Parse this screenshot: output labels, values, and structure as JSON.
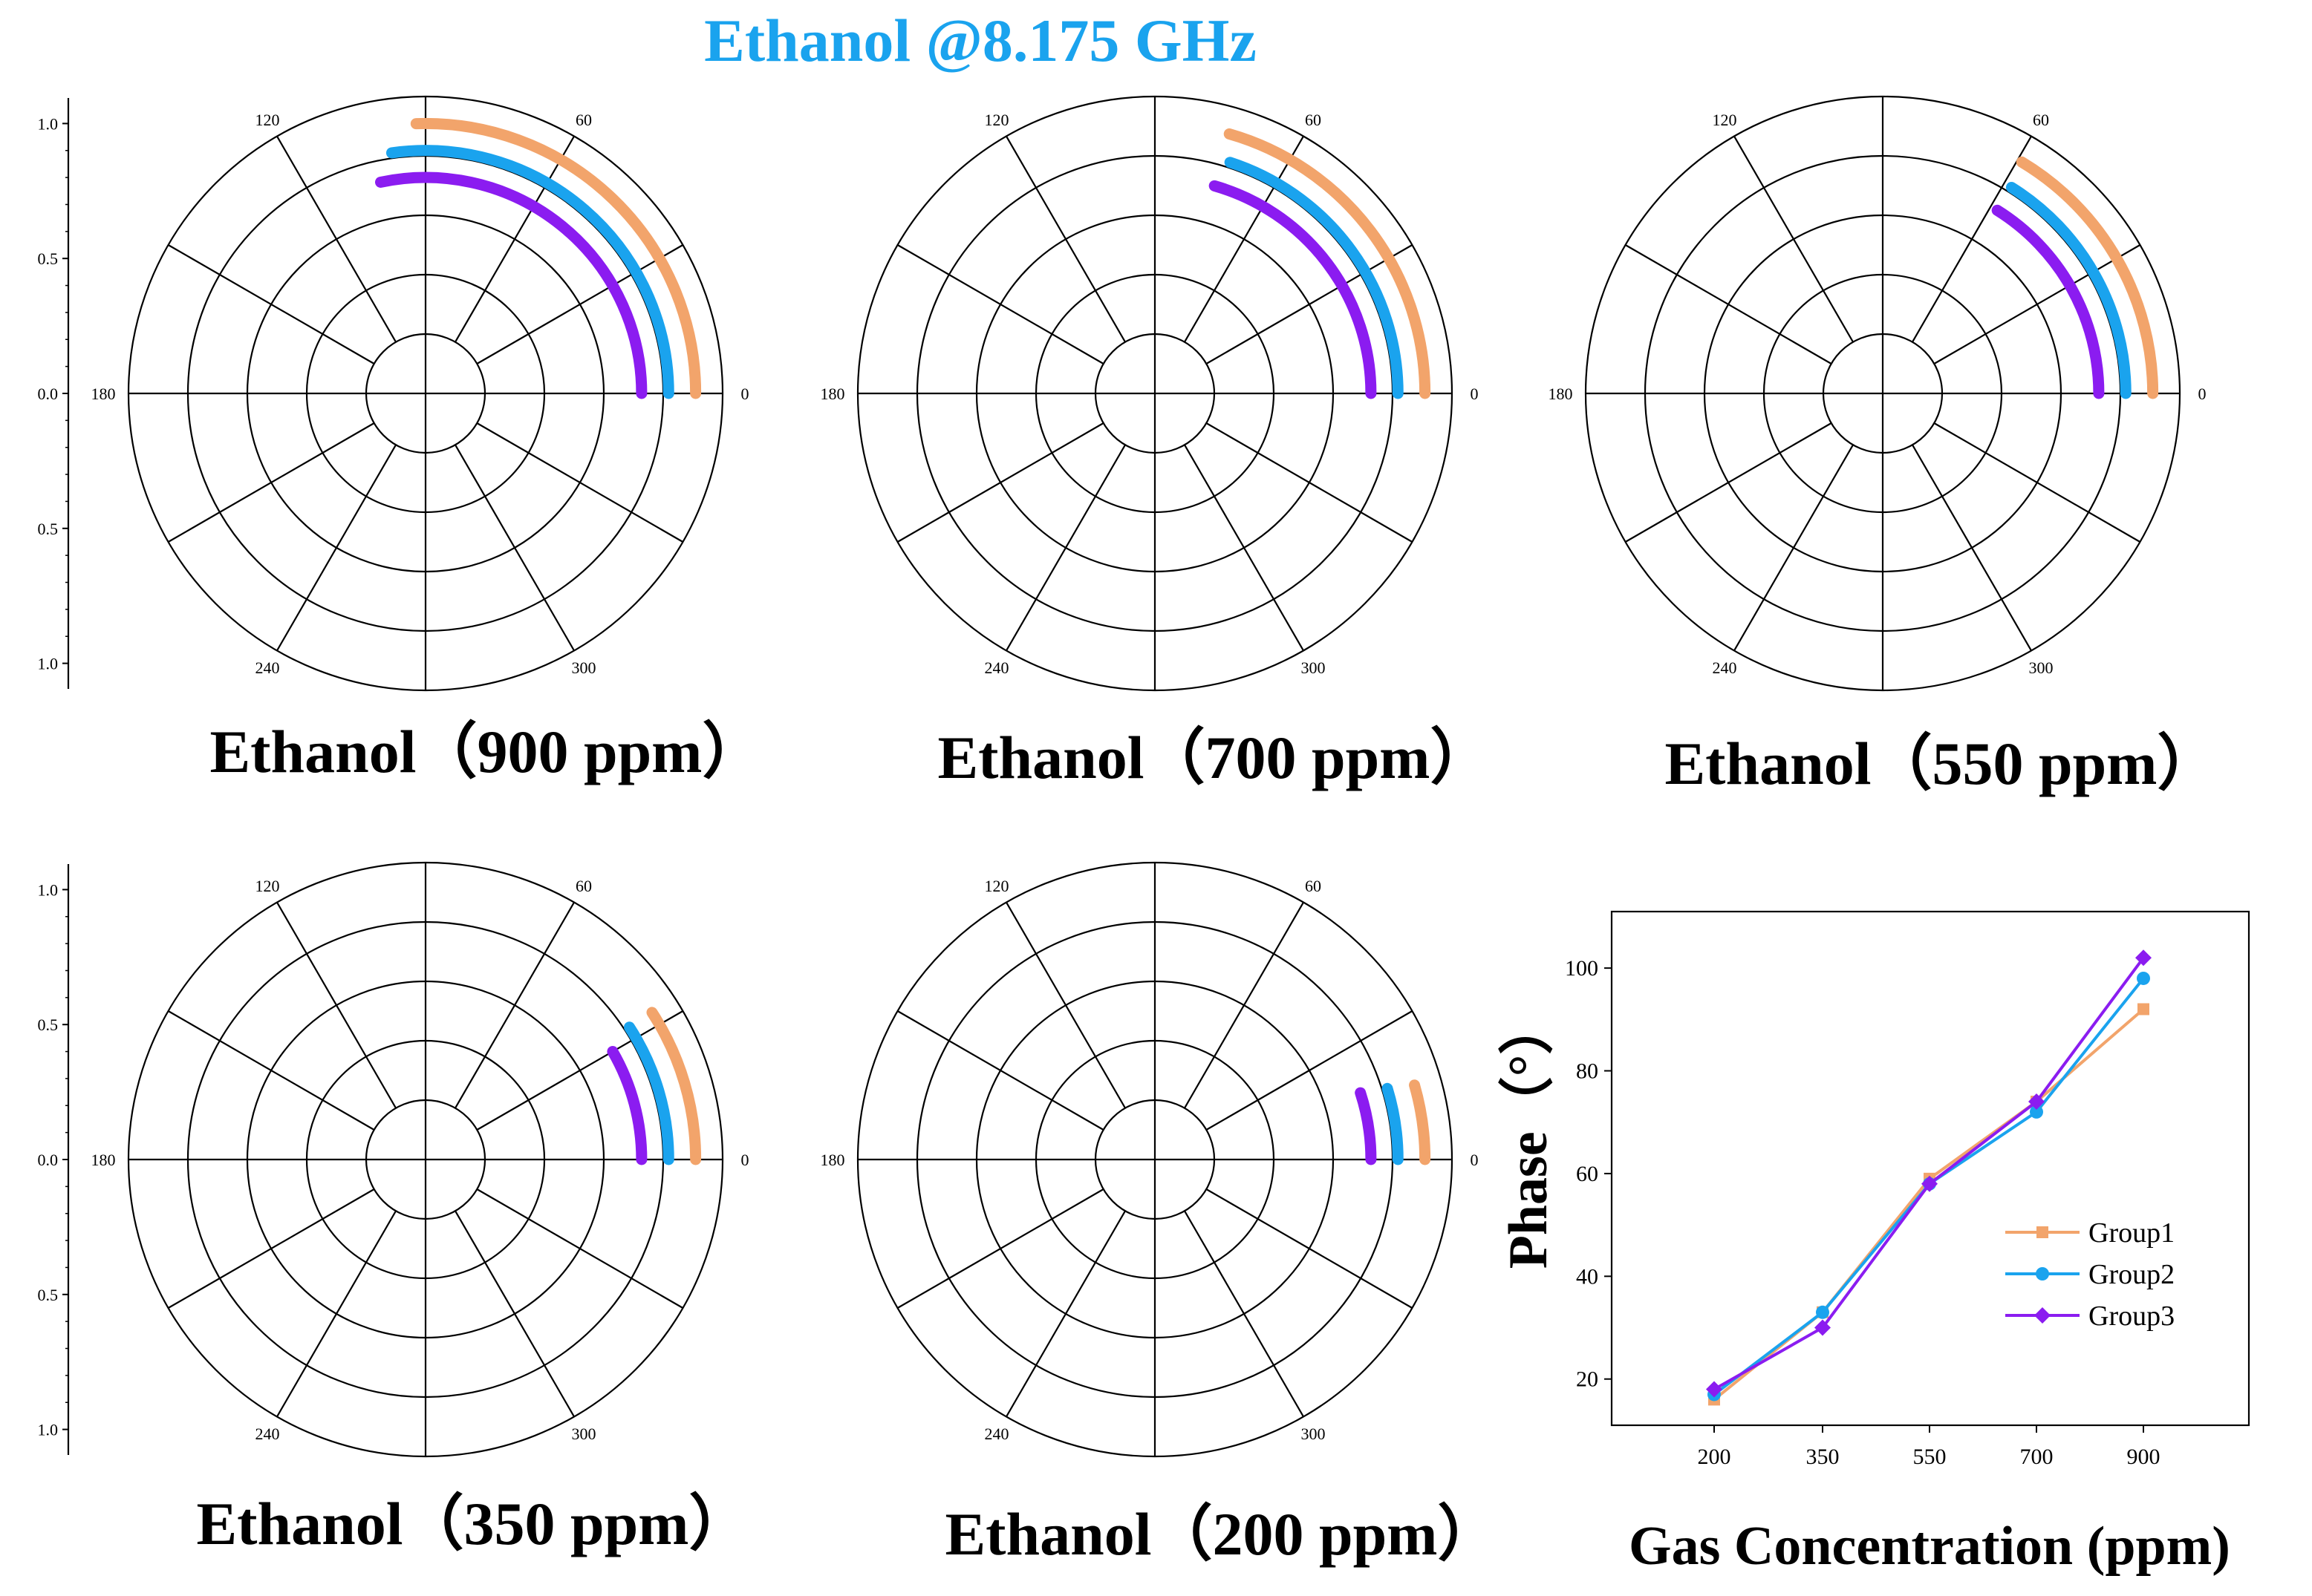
{
  "colors": {
    "group1": "#F2A46B",
    "group2": "#1AA3EE",
    "group3": "#8B1CF0",
    "title": "#1AA3EE",
    "axis": "#000000"
  },
  "chart_data": [
    {
      "type": "title",
      "title": "Ethanol @8.175 GHz"
    },
    {
      "type": "polar",
      "title": "Ethanol（900 ppm）",
      "radial_ticks": [
        "1.0",
        "0.5",
        "0.0",
        "0.5",
        "1.0"
      ],
      "angle_ticks": [
        "0",
        "60",
        "120",
        "180",
        "240",
        "300"
      ],
      "rlim": [
        0,
        1.1
      ],
      "series": [
        {
          "name": "Group1",
          "radius": 1.0,
          "theta_start": 0,
          "theta_end": 92
        },
        {
          "name": "Group2",
          "radius": 0.9,
          "theta_start": 0,
          "theta_end": 98
        },
        {
          "name": "Group3",
          "radius": 0.8,
          "theta_start": 0,
          "theta_end": 102
        }
      ]
    },
    {
      "type": "polar",
      "title": "Ethanol（700 ppm）",
      "radial_ticks": [],
      "angle_ticks": [
        "0",
        "60",
        "120",
        "180",
        "240",
        "300"
      ],
      "rlim": [
        0,
        1.1
      ],
      "series": [
        {
          "name": "Group1",
          "radius": 1.0,
          "theta_start": 0,
          "theta_end": 74
        },
        {
          "name": "Group2",
          "radius": 0.9,
          "theta_start": 0,
          "theta_end": 72
        },
        {
          "name": "Group3",
          "radius": 0.8,
          "theta_start": 0,
          "theta_end": 74
        }
      ]
    },
    {
      "type": "polar",
      "title": "Ethanol（550 ppm）",
      "radial_ticks": [],
      "angle_ticks": [
        "0",
        "60",
        "120",
        "180",
        "240",
        "300"
      ],
      "rlim": [
        0,
        1.1
      ],
      "series": [
        {
          "name": "Group1",
          "radius": 1.0,
          "theta_start": 0,
          "theta_end": 59
        },
        {
          "name": "Group2",
          "radius": 0.9,
          "theta_start": 0,
          "theta_end": 58
        },
        {
          "name": "Group3",
          "radius": 0.8,
          "theta_start": 0,
          "theta_end": 58
        }
      ]
    },
    {
      "type": "polar",
      "title": "Ethanol（350 ppm）",
      "radial_ticks": [
        "1.0",
        "0.5",
        "0.0",
        "0.5",
        "1.0"
      ],
      "angle_ticks": [
        "0",
        "60",
        "120",
        "180",
        "240",
        "300"
      ],
      "rlim": [
        0,
        1.1
      ],
      "series": [
        {
          "name": "Group1",
          "radius": 1.0,
          "theta_start": 0,
          "theta_end": 33
        },
        {
          "name": "Group2",
          "radius": 0.9,
          "theta_start": 0,
          "theta_end": 33
        },
        {
          "name": "Group3",
          "radius": 0.8,
          "theta_start": 0,
          "theta_end": 30
        }
      ]
    },
    {
      "type": "polar",
      "title": "Ethanol（200 ppm）",
      "radial_ticks": [],
      "angle_ticks": [
        "0",
        "60",
        "120",
        "180",
        "240",
        "300"
      ],
      "rlim": [
        0,
        1.1
      ],
      "series": [
        {
          "name": "Group1",
          "radius": 1.0,
          "theta_start": 0,
          "theta_end": 16
        },
        {
          "name": "Group2",
          "radius": 0.9,
          "theta_start": 0,
          "theta_end": 17
        },
        {
          "name": "Group3",
          "radius": 0.8,
          "theta_start": 0,
          "theta_end": 18
        }
      ]
    },
    {
      "type": "line",
      "title": "",
      "xlabel": "Gas Concentration (ppm)",
      "ylabel": "Phase（°）",
      "categories": [
        "200",
        "350",
        "550",
        "700",
        "900"
      ],
      "yticks": [
        "20",
        "40",
        "60",
        "80",
        "100"
      ],
      "ylim": [
        11,
        111
      ],
      "legend_position": "right",
      "series": [
        {
          "name": "Group1",
          "marker": "square",
          "values": [
            16,
            33,
            59,
            74,
            92
          ]
        },
        {
          "name": "Group2",
          "marker": "circle",
          "values": [
            17,
            33,
            58,
            72,
            98
          ]
        },
        {
          "name": "Group3",
          "marker": "diamond",
          "values": [
            18,
            30,
            58,
            74,
            102
          ]
        }
      ]
    }
  ]
}
